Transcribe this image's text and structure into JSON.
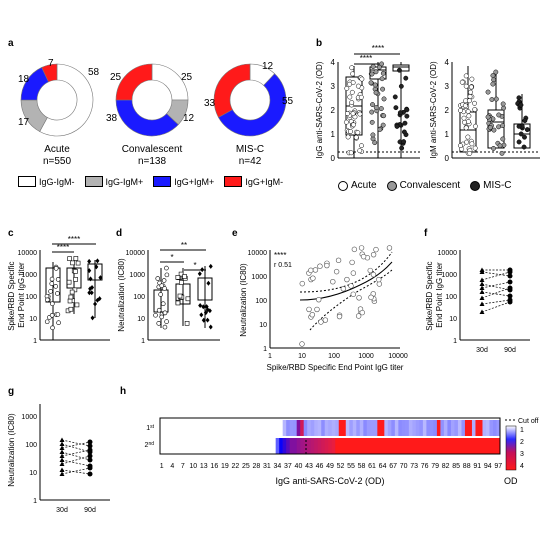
{
  "panels": {
    "a": {
      "label": "a",
      "donuts": [
        {
          "name": "Acute",
          "n": "n=550",
          "slices": [
            {
              "key": "igg-igm-",
              "value": 58,
              "label": "58"
            },
            {
              "key": "igg-igm+",
              "value": 17,
              "label": "17"
            },
            {
              "key": "igg+igm+",
              "value": 18,
              "label": "18"
            },
            {
              "key": "igg+igm-",
              "value": 7,
              "label": "7"
            }
          ]
        },
        {
          "name": "Convalescent",
          "n": "n=138",
          "slices": [
            {
              "key": "igg-igm-",
              "value": 25,
              "label": "25"
            },
            {
              "key": "igg-igm+",
              "value": 12,
              "label": "12"
            },
            {
              "key": "igg+igm+",
              "value": 38,
              "label": "38"
            },
            {
              "key": "igg+igm-",
              "value": 25,
              "label": "25"
            }
          ]
        },
        {
          "name": "MIS-C",
          "n": "n=42",
          "slices": [
            {
              "key": "igg-igm-",
              "value": 12,
              "label": "12"
            },
            {
              "key": "igg+igm+",
              "value": 55,
              "label": "55"
            },
            {
              "key": "igg+igm-",
              "value": 33,
              "label": "33"
            }
          ]
        }
      ],
      "legend": [
        {
          "key": "igg-igm-",
          "label": "IgG-IgM-",
          "color": "#ffffff"
        },
        {
          "key": "igg-igm+",
          "label": "IgG-IgM+",
          "color": "#b3b3b3"
        },
        {
          "key": "igg+igm+",
          "label": "IgG+IgM+",
          "color": "#1a1aff"
        },
        {
          "key": "igg+igm-",
          "label": "IgG+IgM-",
          "color": "#ff1a1a"
        }
      ]
    },
    "b": {
      "label": "b",
      "left_ylabel": "IgG anti-SARS-CoV-2 (OD)",
      "right_ylabel": "IgM anti-SARS-CoV-2 (OD)",
      "yticks": [
        "0",
        "1",
        "2",
        "3",
        "4"
      ],
      "sig": [
        "****",
        "****"
      ],
      "legend": [
        {
          "label": "Acute",
          "color": "#ffffff"
        },
        {
          "label": "Convalescent",
          "color": "#999999"
        },
        {
          "label": "MIS-C",
          "color": "#222222"
        }
      ]
    },
    "c": {
      "label": "c",
      "ylabel": "Spike/RBD Specific\nEnd Point IgG titer",
      "yticks": [
        "1",
        "10",
        "100",
        "1000",
        "10000"
      ],
      "sig": [
        "****",
        "****"
      ]
    },
    "d": {
      "label": "d",
      "ylabel": "Neutralization (IC80)",
      "yticks": [
        "1",
        "10",
        "100",
        "1000",
        "10000"
      ],
      "sig": [
        "**",
        "*",
        "*"
      ]
    },
    "e": {
      "label": "e",
      "ylabel": "Neutralization (IC80)",
      "xlabel": "Spike/RBD Specific End Point IgG titer",
      "yticks": [
        "1",
        "10",
        "100",
        "1000",
        "10000"
      ],
      "xticks": [
        "1",
        "10",
        "100",
        "1000",
        "10000"
      ],
      "stat_sig": "****",
      "stat_r": "r 0.51"
    },
    "f": {
      "label": "f",
      "ylabel": "Spike/RBD Specific\nEnd Point IgG titer",
      "yticks": [
        "1",
        "10",
        "100",
        "1000",
        "10000"
      ],
      "xticks": [
        "30d",
        "90d"
      ]
    },
    "g": {
      "label": "g",
      "ylabel": "Neutralization (IC80)",
      "yticks": [
        "1",
        "10",
        "100",
        "1000"
      ],
      "xticks": [
        "30d",
        "90d"
      ]
    },
    "h": {
      "label": "h",
      "xlabel": "IgG anti-SARS-CoV-2 (OD)",
      "rows": [
        "1st",
        "2nd"
      ],
      "xticks": [
        "1",
        "4",
        "7",
        "10",
        "13",
        "16",
        "19",
        "22",
        "25",
        "28",
        "31",
        "34",
        "37",
        "40",
        "43",
        "46",
        "49",
        "52",
        "55",
        "58",
        "61",
        "64",
        "67",
        "70",
        "73",
        "76",
        "79",
        "82",
        "85",
        "88",
        "91",
        "94",
        "97"
      ],
      "legend_title": "OD",
      "cutoff_label": "Cut off",
      "scale_ticks": [
        "1",
        "2",
        "3",
        "4"
      ]
    }
  }
}
